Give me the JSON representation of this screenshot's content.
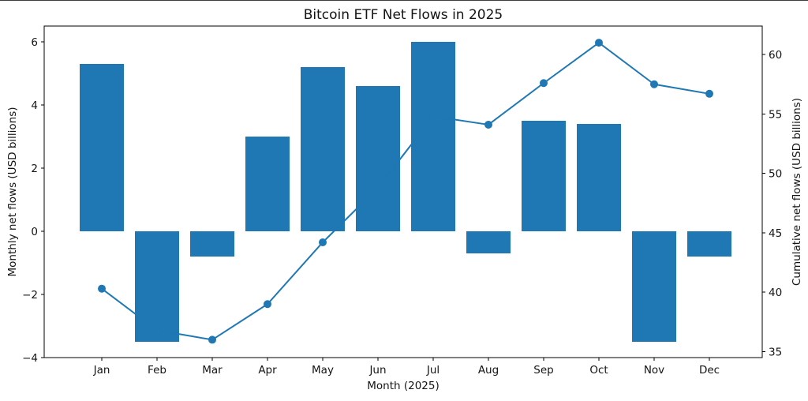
{
  "chart_data": {
    "type": "combo",
    "title": "Bitcoin ETF Net Flows in 2025",
    "categories": [
      "Jan",
      "Feb",
      "Mar",
      "Apr",
      "May",
      "Jun",
      "Jul",
      "Aug",
      "Sep",
      "Oct",
      "Nov",
      "Dec"
    ],
    "series": [
      {
        "name": "Monthly net flows",
        "plot": "bar",
        "axis": "left",
        "color": "#1f77b4",
        "values": [
          5.3,
          -3.5,
          -0.8,
          3.0,
          5.2,
          4.6,
          6.0,
          -0.7,
          3.5,
          3.4,
          -3.5,
          -0.8
        ]
      },
      {
        "name": "Cumulative net flows",
        "plot": "line",
        "axis": "right",
        "color": "#1f77b4",
        "marker": "circle",
        "values": [
          40.3,
          36.8,
          36.0,
          39.0,
          44.2,
          48.8,
          54.8,
          54.1,
          57.6,
          61.0,
          57.5,
          56.7
        ]
      }
    ],
    "axes": {
      "x": {
        "label": "Month (2025)",
        "ticks": [
          "Jan",
          "Feb",
          "Mar",
          "Apr",
          "May",
          "Jun",
          "Jul",
          "Aug",
          "Sep",
          "Oct",
          "Nov",
          "Dec"
        ]
      },
      "left": {
        "label": "Monthly net flows (USD billions)",
        "ticks": [
          -4,
          -2,
          0,
          2,
          4,
          6
        ],
        "ylim": [
          -4,
          6.5
        ]
      },
      "right": {
        "label": "Cumulative net flows (USD billions)",
        "ticks": [
          35,
          40,
          45,
          50,
          55,
          60
        ],
        "ylim": [
          34.5,
          62.4
        ]
      }
    },
    "grid": false,
    "legend": "none",
    "colors": {
      "accent": "#1f77b4",
      "spine": "#000000",
      "text": "#141414"
    }
  }
}
